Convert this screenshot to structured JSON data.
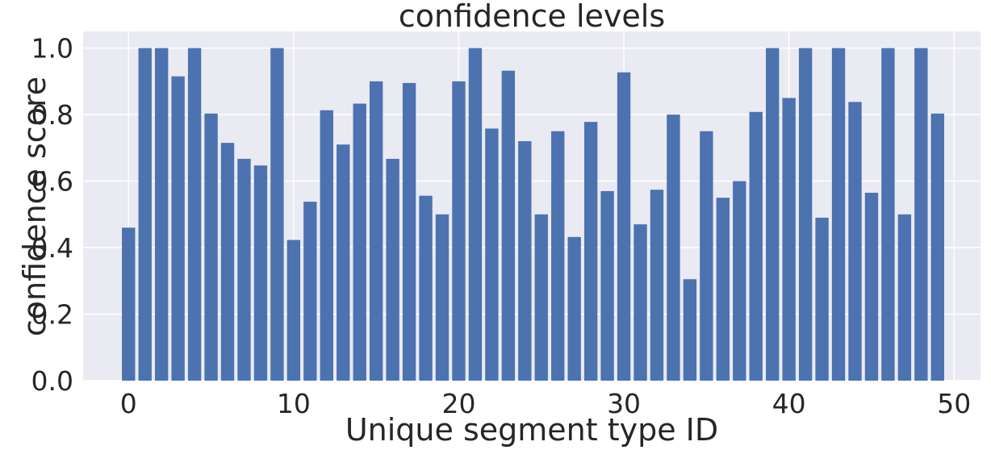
{
  "chart_data": {
    "type": "bar",
    "title": "confidence levels",
    "xlabel": "Unique segment type ID",
    "ylabel": "confidence score",
    "x": [
      0,
      1,
      2,
      3,
      4,
      5,
      6,
      7,
      8,
      9,
      10,
      11,
      12,
      13,
      14,
      15,
      16,
      17,
      18,
      19,
      20,
      21,
      22,
      23,
      24,
      25,
      26,
      27,
      28,
      29,
      30,
      31,
      32,
      33,
      34,
      35,
      36,
      37,
      38,
      39,
      40,
      41,
      42,
      43,
      44,
      45,
      46,
      47,
      48,
      49
    ],
    "values": [
      0.46,
      1.0,
      1.0,
      0.915,
      1.0,
      0.803,
      0.715,
      0.667,
      0.647,
      1.0,
      0.423,
      0.538,
      0.813,
      0.71,
      0.833,
      0.9,
      0.667,
      0.895,
      0.556,
      0.5,
      0.9,
      1.0,
      0.758,
      0.932,
      0.72,
      0.5,
      0.75,
      0.432,
      0.778,
      0.57,
      0.927,
      0.47,
      0.574,
      0.8,
      0.305,
      0.75,
      0.55,
      0.6,
      0.808,
      1.0,
      0.85,
      1.0,
      0.49,
      1.0,
      0.838,
      0.565,
      1.0,
      0.5,
      1.0,
      0.803
    ],
    "xticks": [
      "0",
      "10",
      "20",
      "30",
      "40",
      "50"
    ],
    "yticks": [
      "0.0",
      "0.2",
      "0.4",
      "0.6",
      "0.8",
      "1.0"
    ],
    "xlim": [
      -2.75,
      51.6
    ],
    "ylim": [
      0,
      1.05
    ],
    "bar_color": "#4c72b0",
    "plot_background": "#eaeaf2",
    "grid": true
  }
}
